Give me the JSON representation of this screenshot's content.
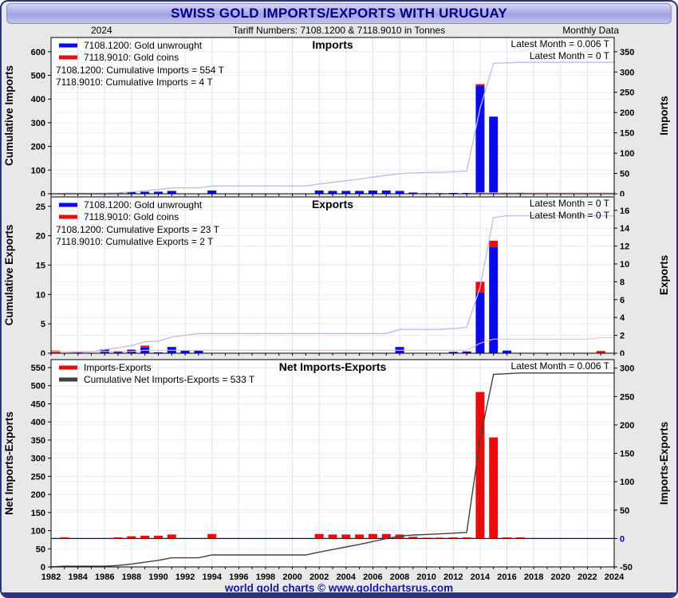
{
  "window": {
    "title": "SWISS GOLD IMPORTS/EXPORTS WITH URUGUAY",
    "year_label": "2024",
    "tariff_line": "Tariff Numbers: 7108.1200 & 7118.9010 in Tonnes",
    "frequency_label": "Monthly Data",
    "footer": "world gold charts © www.goldchartsrus.com"
  },
  "colors": {
    "title_text": "#000080",
    "bar_blue": "#0a0af0",
    "bar_red": "#ee0a0a",
    "cum_blue_line": "#b9bdeb",
    "cum_red_line": "#f2bcc4",
    "cum_net_line": "#404040",
    "zero_line_blue": "#0000bb",
    "grid_vertical": "#d7e3f4",
    "grid_h_left": "#e9edf8",
    "grid_h_right": "#f6e9ee"
  },
  "chart_data": [
    {
      "type": "bar",
      "title": "Imports",
      "legend": [
        {
          "label": "7108.1200: Gold unwrought",
          "color": "#0a0af0"
        },
        {
          "label": "7118.9010: Gold coins",
          "color": "#ee0a0a"
        }
      ],
      "annotations": [
        "7108.1200: Cumulative Imports = 554 T",
        "7118.9010: Cumulative Imports = 4 T"
      ],
      "latest": [
        "Latest Month = 0.006 T",
        "Latest Month = 0 T"
      ],
      "x_axis": {
        "start": 1982,
        "end": 2024,
        "label_step": 2
      },
      "left_axis": {
        "label": "Cumulative Imports",
        "ticks": [
          0,
          100,
          200,
          300,
          400,
          500,
          600
        ],
        "min": 0,
        "max": 660
      },
      "right_axis": {
        "label": "Imports",
        "ticks": [
          0,
          50,
          100,
          150,
          200,
          250,
          300,
          350
        ],
        "min": 0,
        "max": 385
      },
      "series": [
        {
          "kind": "bar",
          "name": "gold-unwrought-monthly",
          "color": "#0a0af0",
          "values": {
            "1983": 2,
            "1987": 2,
            "1988": 4,
            "1989": 5,
            "1990": 5,
            "1991": 7,
            "1994": 8,
            "2002": 8,
            "2003": 7,
            "2004": 7,
            "2005": 7,
            "2006": 8,
            "2007": 8,
            "2008": 7,
            "2009": 3,
            "2010": 1.5,
            "2011": 1.5,
            "2012": 2,
            "2013": 2,
            "2014": 266,
            "2015": 190,
            "2016": 2,
            "2017": 2
          }
        },
        {
          "kind": "bar",
          "name": "gold-coins-monthly",
          "color": "#ee0a0a",
          "stack": true,
          "values": {
            "2014": 4
          }
        },
        {
          "kind": "cumulative",
          "name": "gold-unwrought-cumulative",
          "color": "#b9bdeb",
          "source": 0,
          "width": 1.3
        },
        {
          "kind": "cumulative",
          "name": "gold-coins-cumulative",
          "color": "#f2bcc4",
          "source": 1,
          "width": 1.1
        }
      ]
    },
    {
      "type": "bar",
      "title": "Exports",
      "legend": [
        {
          "label": "7108.1200: Gold unwrought",
          "color": "#0a0af0"
        },
        {
          "label": "7118.9010: Gold coins",
          "color": "#ee0a0a"
        }
      ],
      "annotations": [
        "7108.1200: Cumulative Exports = 23 T",
        "7118.9010: Cumulative Exports = 2 T"
      ],
      "latest": [
        "Latest Month = 0 T",
        "Latest Month = 0 T"
      ],
      "x_axis": {
        "start": 1982,
        "end": 2024,
        "label_step": 2
      },
      "left_axis": {
        "label": "Cumulative Exports",
        "ticks": [
          0,
          5,
          10,
          15,
          20,
          25
        ],
        "min": 0,
        "max": 26.6
      },
      "right_axis": {
        "label": "Exports",
        "ticks": [
          0,
          2,
          4,
          6,
          8,
          10,
          12,
          14,
          16
        ],
        "min": 0,
        "max": 17.5
      },
      "series": [
        {
          "kind": "bar",
          "name": "gold-unwrought-monthly",
          "color": "#0a0af0",
          "values": {
            "1984": 0.2,
            "1986": 0.45,
            "1987": 0.25,
            "1988": 0.4,
            "1989": 0.65,
            "1990": 0.1,
            "1991": 0.7,
            "1992": 0.3,
            "1993": 0.3,
            "2008": 0.7,
            "2012": 0.15,
            "2013": 0.2,
            "2014": 6.8,
            "2015": 11.9,
            "2016": 0.3
          }
        },
        {
          "kind": "bar",
          "name": "gold-coins-monthly",
          "color": "#ee0a0a",
          "stack": true,
          "values": {
            "1982": 0.3,
            "1989": 0.2,
            "2014": 1.2,
            "2015": 0.7,
            "2023": 0.25
          }
        },
        {
          "kind": "cumulative",
          "name": "gold-unwrought-cumulative",
          "color": "#b9bdeb",
          "source": 0,
          "width": 1.3
        },
        {
          "kind": "cumulative",
          "name": "gold-coins-cumulative",
          "color": "#f2bcc4",
          "source": 1,
          "width": 1.1
        }
      ]
    },
    {
      "type": "bar",
      "title": "Net Imports-Exports",
      "legend": [
        {
          "label": "Imports-Exports",
          "color": "#ee0a0a"
        },
        {
          "label": "Cumulative Net Imports-Exports = 533 T",
          "color": "#404040"
        }
      ],
      "annotations": [],
      "latest": [
        "Latest Month = 0.006 T"
      ],
      "x_axis": {
        "start": 1982,
        "end": 2024,
        "label_step": 2
      },
      "left_axis": {
        "label": "Net Imports-Exports",
        "ticks": [
          0,
          50,
          100,
          150,
          200,
          250,
          300,
          350,
          400,
          450,
          500,
          550
        ],
        "min": 0,
        "max": 572
      },
      "right_axis": {
        "label": "Imports-Exports",
        "ticks": [
          -50,
          0,
          50,
          100,
          150,
          200,
          250,
          300
        ],
        "min": -50,
        "max": 315
      },
      "zero_line": true,
      "series": [
        {
          "kind": "bar",
          "name": "net-imports-exports-monthly",
          "color": "#ee0a0a",
          "values": {
            "1983": 2,
            "1987": 2,
            "1988": 4,
            "1989": 5,
            "1990": 5,
            "1991": 7,
            "1994": 8,
            "2002": 8,
            "2003": 7,
            "2004": 7,
            "2005": 7,
            "2006": 8,
            "2007": 8,
            "2008": 7,
            "2009": 3,
            "2010": 1.5,
            "2011": 1.5,
            "2012": 2,
            "2013": 2,
            "2014": 258,
            "2015": 178,
            "2016": 2,
            "2017": 2
          }
        },
        {
          "kind": "cumulative",
          "name": "cumulative-net-imports-exports",
          "color": "#404040",
          "source": 0,
          "width": 1.4
        }
      ]
    }
  ]
}
